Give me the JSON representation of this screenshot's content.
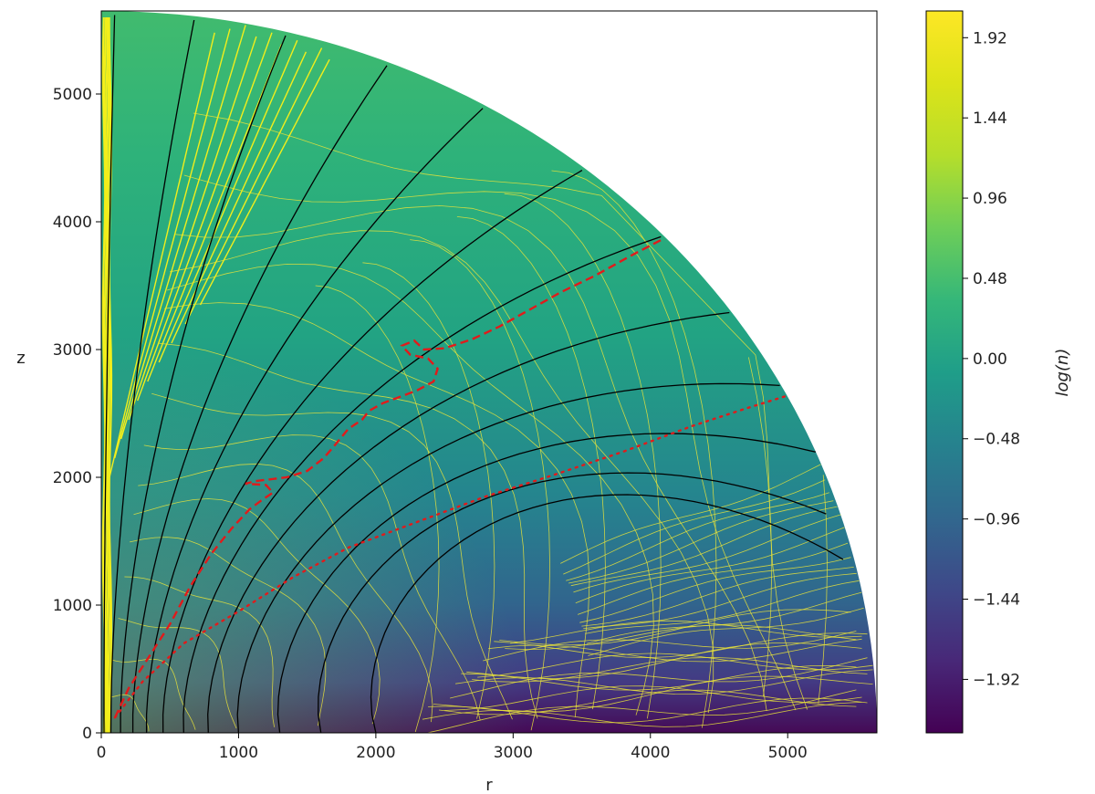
{
  "chart_data": {
    "type": "heatmap",
    "subtype": "quarter-disk filled contour map with contour lines, black radial field lines, red dashed and dotted curves",
    "xlabel": "r",
    "ylabel": "z",
    "xlim": [
      0,
      5650
    ],
    "ylim": [
      0,
      5650
    ],
    "x_ticks": [
      0,
      1000,
      2000,
      3000,
      4000,
      5000
    ],
    "x_tick_labels": [
      "0",
      "1000",
      "2000",
      "3000",
      "4000",
      "5000"
    ],
    "y_ticks": [
      0,
      1000,
      2000,
      3000,
      4000,
      5000
    ],
    "y_tick_labels": [
      "0",
      "1000",
      "2000",
      "3000",
      "4000",
      "5000"
    ],
    "domain_radius": 5650,
    "colormap": "viridis",
    "colorbar": {
      "label": "log(n)",
      "range": [
        -2.24,
        2.08
      ],
      "ticks": [
        1.92,
        1.44,
        0.96,
        0.48,
        0.0,
        -0.48,
        -0.96,
        -1.44,
        -1.92
      ],
      "tick_labels": [
        "1.92",
        "1.44",
        "0.96",
        "0.48",
        "0.00",
        "−0.48",
        "−0.96",
        "−1.44",
        "−1.92"
      ],
      "placement": "right"
    },
    "field_lines": {
      "color": "#000000",
      "footpoints_r": [
        20,
        70,
        140,
        230,
        330,
        450,
        600,
        780,
        1000,
        1300,
        1600,
        2000
      ],
      "endpoint_angles_deg": [
        89,
        83,
        76,
        68,
        60,
        51,
        43,
        35,
        28,
        22,
        16,
        12
      ]
    },
    "dashed_curve": {
      "color": "#e11b1b",
      "style": "dashed",
      "points": [
        [
          100,
          120
        ],
        [
          200,
          350
        ],
        [
          350,
          600
        ],
        [
          500,
          850
        ],
        [
          650,
          1150
        ],
        [
          800,
          1400
        ],
        [
          950,
          1600
        ],
        [
          1080,
          1750
        ],
        [
          1180,
          1830
        ],
        [
          1250,
          1880
        ],
        [
          1200,
          1940
        ],
        [
          1050,
          1950
        ],
        [
          1120,
          1970
        ],
        [
          1350,
          2000
        ],
        [
          1500,
          2050
        ],
        [
          1620,
          2150
        ],
        [
          1700,
          2250
        ],
        [
          1800,
          2380
        ],
        [
          1900,
          2450
        ],
        [
          1950,
          2520
        ],
        [
          2050,
          2580
        ],
        [
          2150,
          2620
        ],
        [
          2300,
          2680
        ],
        [
          2420,
          2750
        ],
        [
          2450,
          2850
        ],
        [
          2380,
          2930
        ],
        [
          2250,
          2960
        ],
        [
          2190,
          3030
        ],
        [
          2280,
          3070
        ],
        [
          2350,
          3000
        ],
        [
          2500,
          3010
        ],
        [
          2700,
          3080
        ],
        [
          2900,
          3180
        ],
        [
          3100,
          3300
        ],
        [
          3350,
          3450
        ],
        [
          3600,
          3580
        ],
        [
          3850,
          3730
        ],
        [
          4100,
          3870
        ]
      ]
    },
    "dotted_curve": {
      "color": "#e11b1b",
      "style": "dotted",
      "points": [
        [
          100,
          120
        ],
        [
          300,
          400
        ],
        [
          600,
          700
        ],
        [
          1000,
          950
        ],
        [
          1400,
          1220
        ],
        [
          1800,
          1450
        ],
        [
          2300,
          1650
        ],
        [
          2800,
          1850
        ],
        [
          3300,
          2020
        ],
        [
          3800,
          2200
        ],
        [
          4300,
          2400
        ],
        [
          4700,
          2540
        ],
        [
          5000,
          2640
        ]
      ]
    }
  }
}
